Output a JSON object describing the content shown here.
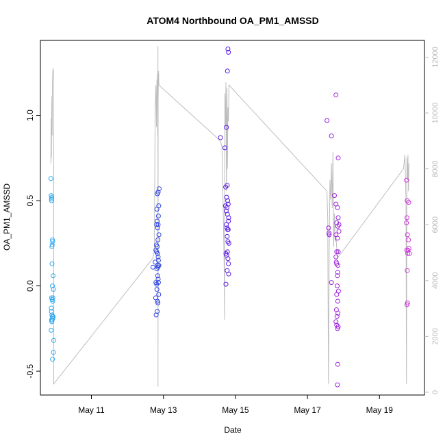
{
  "chart_data": {
    "type": "scatter",
    "title": "ATOM4 Northbound OA_PM1_AMSSD",
    "xlabel": "Date",
    "ylabel": "OA_PM1_AMSSD",
    "x_axis": {
      "type": "date",
      "range": [
        "2014-05-09T14:00",
        "2014-05-20T06:00"
      ],
      "ticks": [
        {
          "value": "2014-05-11",
          "label": "May 11"
        },
        {
          "value": "2014-05-13",
          "label": "May 13"
        },
        {
          "value": "2014-05-15",
          "label": "May 15"
        },
        {
          "value": "2014-05-17",
          "label": "May 17"
        },
        {
          "value": "2014-05-19",
          "label": "May 19"
        }
      ]
    },
    "y_axis": {
      "range": [
        -0.64,
        1.44
      ],
      "ticks": [
        -0.5,
        0.0,
        0.5,
        1.0
      ],
      "tick_labels": [
        "-0.5",
        "0.0",
        "0.5",
        "1.0"
      ]
    },
    "y2_axis": {
      "range": [
        -100,
        12600
      ],
      "ticks": [
        0,
        2000,
        4000,
        6000,
        8000,
        10000,
        12000
      ],
      "tick_labels": [
        "0",
        "2000",
        "4000",
        "6000",
        "8000",
        "10000",
        "12000"
      ],
      "color": "#b8b8b8"
    },
    "grid": false,
    "legend": "none",
    "point_color_scale": [
      "#2fb4ef",
      "#1f4fe0",
      "#5a16e8",
      "#9a20dc",
      "#d83ad8"
    ],
    "line_color": "#bdbdbd",
    "series": [
      {
        "kind": "points",
        "points": [
          [
            "2014-05-09T21:00",
            0.63
          ],
          [
            "2014-05-09T21:10",
            0.53
          ],
          [
            "2014-05-09T21:20",
            0.51
          ],
          [
            "2014-05-09T21:30",
            0.5
          ],
          [
            "2014-05-09T21:35",
            0.52
          ],
          [
            "2014-05-09T22:00",
            0.27
          ],
          [
            "2014-05-09T21:50",
            0.24
          ],
          [
            "2014-05-09T22:10",
            0.26
          ],
          [
            "2014-05-09T21:40",
            0.23
          ],
          [
            "2014-05-09T21:45",
            0.13
          ],
          [
            "2014-05-09T22:30",
            0.06
          ],
          [
            "2014-05-09T22:00",
            0.0
          ],
          [
            "2014-05-09T22:40",
            -0.02
          ],
          [
            "2014-05-09T21:30",
            -0.07
          ],
          [
            "2014-05-09T21:50",
            -0.08
          ],
          [
            "2014-05-09T22:20",
            -0.07
          ],
          [
            "2014-05-09T22:10",
            -0.09
          ],
          [
            "2014-05-09T21:15",
            -0.13
          ],
          [
            "2014-05-09T21:20",
            -0.15
          ],
          [
            "2014-05-09T21:40",
            -0.17
          ],
          [
            "2014-05-09T22:00",
            -0.18
          ],
          [
            "2014-05-09T22:30",
            -0.18
          ],
          [
            "2014-05-09T21:25",
            -0.2
          ],
          [
            "2014-05-09T21:35",
            -0.21
          ],
          [
            "2014-05-09T22:20",
            -0.19
          ],
          [
            "2014-05-09T21:10",
            -0.26
          ],
          [
            "2014-05-09T22:50",
            -0.32
          ],
          [
            "2014-05-09T22:40",
            -0.39
          ],
          [
            "2014-05-09T22:05",
            -0.43
          ],
          [
            "2014-05-09T21:55",
            -0.2
          ],
          [
            "2014-05-12T17:00",
            0.11
          ],
          [
            "2014-05-12T18:30",
            0.14
          ],
          [
            "2014-05-12T19:00",
            0.02
          ],
          [
            "2014-05-12T19:30",
            0.01
          ],
          [
            "2014-05-12T19:40",
            -0.02
          ],
          [
            "2014-05-12T18:50",
            -0.07
          ],
          [
            "2014-05-12T19:10",
            -0.17
          ],
          [
            "2014-05-12T19:50",
            -0.15
          ],
          [
            "2014-05-12T20:00",
            -0.09
          ],
          [
            "2014-05-12T20:20",
            -0.1
          ],
          [
            "2014-05-12T19:00",
            0.21
          ],
          [
            "2014-05-12T19:20",
            0.24
          ],
          [
            "2014-05-12T19:30",
            0.2
          ],
          [
            "2014-05-12T19:50",
            0.23
          ],
          [
            "2014-05-12T20:10",
            0.19
          ],
          [
            "2014-05-12T20:30",
            0.17
          ],
          [
            "2014-05-12T20:40",
            0.15
          ],
          [
            "2014-05-12T19:40",
            0.1
          ],
          [
            "2014-05-12T20:00",
            0.12
          ],
          [
            "2014-05-12T20:20",
            0.11
          ],
          [
            "2014-05-12T20:50",
            0.12
          ],
          [
            "2014-05-12T21:00",
            0.12
          ],
          [
            "2014-05-12T20:30",
            0.04
          ],
          [
            "2014-05-12T20:10",
            0.06
          ],
          [
            "2014-05-12T20:40",
            0.02
          ],
          [
            "2014-05-12T20:50",
            -0.05
          ],
          [
            "2014-05-12T19:30",
            0.36
          ],
          [
            "2014-05-12T19:50",
            0.38
          ],
          [
            "2014-05-12T20:30",
            0.36
          ],
          [
            "2014-05-12T20:40",
            0.41
          ],
          [
            "2014-05-12T20:10",
            0.34
          ],
          [
            "2014-05-12T21:00",
            0.3
          ],
          [
            "2014-05-12T20:20",
            0.27
          ],
          [
            "2014-05-12T19:40",
            0.45
          ],
          [
            "2014-05-12T20:50",
            0.47
          ],
          [
            "2014-05-12T20:00",
            0.54
          ],
          [
            "2014-05-12T20:30",
            0.55
          ],
          [
            "2014-05-12T21:10",
            0.57
          ],
          [
            "2014-05-14T14:00",
            0.87
          ],
          [
            "2014-05-14T17:00",
            0.81
          ],
          [
            "2014-05-14T18:00",
            0.93
          ],
          [
            "2014-05-14T19:00",
            1.39
          ],
          [
            "2014-05-14T19:20",
            1.37
          ],
          [
            "2014-05-14T18:40",
            1.26
          ],
          [
            "2014-05-14T17:30",
            0.58
          ],
          [
            "2014-05-14T18:10",
            0.52
          ],
          [
            "2014-05-14T18:30",
            0.59
          ],
          [
            "2014-05-14T18:50",
            0.5
          ],
          [
            "2014-05-14T19:10",
            0.48
          ],
          [
            "2014-05-14T17:20",
            0.47
          ],
          [
            "2014-05-14T17:50",
            0.44
          ],
          [
            "2014-05-14T18:20",
            0.46
          ],
          [
            "2014-05-14T18:40",
            0.42
          ],
          [
            "2014-05-14T19:30",
            0.4
          ],
          [
            "2014-05-14T19:20",
            0.38
          ],
          [
            "2014-05-14T18:00",
            0.36
          ],
          [
            "2014-05-14T18:20",
            0.34
          ],
          [
            "2014-05-14T18:50",
            0.33
          ],
          [
            "2014-05-14T19:10",
            0.33
          ],
          [
            "2014-05-14T18:30",
            0.29
          ],
          [
            "2014-05-14T19:00",
            0.26
          ],
          [
            "2014-05-14T19:40",
            0.25
          ],
          [
            "2014-05-14T17:40",
            0.19
          ],
          [
            "2014-05-14T18:10",
            0.18
          ],
          [
            "2014-05-14T18:40",
            0.2
          ],
          [
            "2014-05-14T19:00",
            0.16
          ],
          [
            "2014-05-14T19:20",
            0.13
          ],
          [
            "2014-05-14T18:30",
            0.09
          ],
          [
            "2014-05-14T19:30",
            0.07
          ],
          [
            "2014-05-14T17:40",
            0.01
          ],
          [
            "2014-05-17T13:00",
            0.97
          ],
          [
            "2014-05-17T16:00",
            0.88
          ],
          [
            "2014-05-17T19:00",
            1.12
          ],
          [
            "2014-05-17T20:30",
            0.75
          ],
          [
            "2014-05-17T18:00",
            0.53
          ],
          [
            "2014-05-17T19:00",
            0.48
          ],
          [
            "2014-05-17T20:00",
            0.46
          ],
          [
            "2014-05-17T20:30",
            0.4
          ],
          [
            "2014-05-17T19:30",
            0.37
          ],
          [
            "2014-05-17T20:10",
            0.35
          ],
          [
            "2014-05-17T21:00",
            0.36
          ],
          [
            "2014-05-17T14:00",
            0.34
          ],
          [
            "2014-05-17T14:20",
            0.31
          ],
          [
            "2014-05-17T14:30",
            0.3
          ],
          [
            "2014-05-17T19:00",
            0.3
          ],
          [
            "2014-05-17T20:00",
            0.28
          ],
          [
            "2014-05-17T21:00",
            0.32
          ],
          [
            "2014-05-17T19:30",
            0.2
          ],
          [
            "2014-05-17T20:30",
            0.2
          ],
          [
            "2014-05-17T19:00",
            0.17
          ],
          [
            "2014-05-17T19:30",
            0.13
          ],
          [
            "2014-05-17T20:20",
            0.12
          ],
          [
            "2014-05-17T19:10",
            0.14
          ],
          [
            "2014-05-17T20:10",
            0.08
          ],
          [
            "2014-05-17T20:00",
            0.06
          ],
          [
            "2014-05-17T16:00",
            0.02
          ],
          [
            "2014-05-17T19:50",
            0.0
          ],
          [
            "2014-05-17T20:40",
            -0.03
          ],
          [
            "2014-05-17T19:30",
            -0.05
          ],
          [
            "2014-05-17T20:10",
            -0.09
          ],
          [
            "2014-05-17T19:20",
            -0.14
          ],
          [
            "2014-05-17T19:40",
            -0.18
          ],
          [
            "2014-05-17T20:20",
            -0.16
          ],
          [
            "2014-05-17T19:00",
            -0.21
          ],
          [
            "2014-05-17T19:30",
            -0.23
          ],
          [
            "2014-05-17T20:30",
            -0.24
          ],
          [
            "2014-05-17T20:00",
            -0.25
          ],
          [
            "2014-05-17T20:10",
            -0.46
          ],
          [
            "2014-05-17T20:00",
            -0.58
          ],
          [
            "2014-05-19T18:00",
            0.62
          ],
          [
            "2014-05-19T18:30",
            0.5
          ],
          [
            "2014-05-19T19:30",
            0.49
          ],
          [
            "2014-05-19T18:20",
            0.4
          ],
          [
            "2014-05-19T18:00",
            0.37
          ],
          [
            "2014-05-19T18:40",
            0.3
          ],
          [
            "2014-05-19T19:20",
            0.27
          ],
          [
            "2014-05-19T20:00",
            0.19
          ],
          [
            "2014-05-19T19:00",
            0.21
          ],
          [
            "2014-05-19T18:10",
            0.21
          ],
          [
            "2014-05-19T18:50",
            0.19
          ],
          [
            "2014-05-19T19:40",
            0.22
          ],
          [
            "2014-05-19T18:30",
            0.09
          ],
          [
            "2014-05-19T18:40",
            -0.1
          ],
          [
            "2014-05-19T18:20",
            -0.11
          ]
        ]
      },
      {
        "kind": "line",
        "axis": "y2",
        "points": [
          [
            "2014-05-09T21:00",
            8200
          ],
          [
            "2014-05-09T21:10",
            9800
          ],
          [
            "2014-05-09T21:20",
            8400
          ],
          [
            "2014-05-09T21:30",
            9900
          ],
          [
            "2014-05-09T21:40",
            10600
          ],
          [
            "2014-05-09T21:50",
            9200
          ],
          [
            "2014-05-09T22:00",
            11000
          ],
          [
            "2014-05-09T22:15",
            11500
          ],
          [
            "2014-05-09T22:30",
            11600
          ],
          [
            "2014-05-09T22:40",
            11500
          ],
          [
            "2014-05-09T22:50",
            8000
          ],
          [
            "2014-05-09T22:55",
            300
          ],
          [
            "2014-05-12T17:00",
            4800
          ],
          [
            "2014-05-12T18:00",
            5100
          ],
          [
            "2014-05-12T18:30",
            10100
          ],
          [
            "2014-05-12T19:00",
            11000
          ],
          [
            "2014-05-12T19:20",
            9500
          ],
          [
            "2014-05-12T19:40",
            11200
          ],
          [
            "2014-05-12T19:50",
            10700
          ],
          [
            "2014-05-12T20:00",
            11400
          ],
          [
            "2014-05-12T20:10",
            9200
          ],
          [
            "2014-05-12T20:20",
            12400
          ],
          [
            "2014-05-12T20:25",
            200
          ],
          [
            "2014-05-12T20:30",
            10500
          ],
          [
            "2014-05-12T20:45",
            11500
          ],
          [
            "2014-05-12T21:00",
            11000
          ],
          [
            "2014-05-14T14:00",
            9000
          ],
          [
            "2014-05-14T15:00",
            8800
          ],
          [
            "2014-05-14T16:00",
            6000
          ],
          [
            "2014-05-14T16:30",
            4500
          ],
          [
            "2014-05-14T16:45",
            2600
          ],
          [
            "2014-05-14T17:00",
            10700
          ],
          [
            "2014-05-14T17:20",
            9500
          ],
          [
            "2014-05-14T17:40",
            11100
          ],
          [
            "2014-05-14T18:00",
            7200
          ],
          [
            "2014-05-14T18:20",
            10900
          ],
          [
            "2014-05-14T18:40",
            8000
          ],
          [
            "2014-05-14T19:00",
            10200
          ],
          [
            "2014-05-14T19:20",
            9700
          ],
          [
            "2014-05-14T19:40",
            11000
          ],
          [
            "2014-05-17T13:00",
            7200
          ],
          [
            "2014-05-17T13:30",
            6200
          ],
          [
            "2014-05-17T14:00",
            300
          ],
          [
            "2014-05-17T14:30",
            4800
          ],
          [
            "2014-05-17T15:00",
            7600
          ],
          [
            "2014-05-17T15:30",
            6900
          ],
          [
            "2014-05-17T16:00",
            8200
          ],
          [
            "2014-05-17T16:30",
            6600
          ],
          [
            "2014-05-17T17:00",
            8600
          ],
          [
            "2014-05-17T17:30",
            5200
          ],
          [
            "2014-05-17T18:00",
            6400
          ],
          [
            "2014-05-17T18:30",
            5400
          ],
          [
            "2014-05-17T19:00",
            5600
          ],
          [
            "2014-05-17T20:00",
            4800
          ],
          [
            "2014-05-19T16:00",
            8000
          ],
          [
            "2014-05-19T17:00",
            8500
          ],
          [
            "2014-05-19T17:40",
            6900
          ],
          [
            "2014-05-19T18:00",
            300
          ],
          [
            "2014-05-19T18:20",
            8400
          ],
          [
            "2014-05-19T18:40",
            7600
          ],
          [
            "2014-05-19T19:00",
            8500
          ],
          [
            "2014-05-19T19:20",
            7200
          ],
          [
            "2014-05-19T19:40",
            8200
          ]
        ]
      }
    ]
  }
}
